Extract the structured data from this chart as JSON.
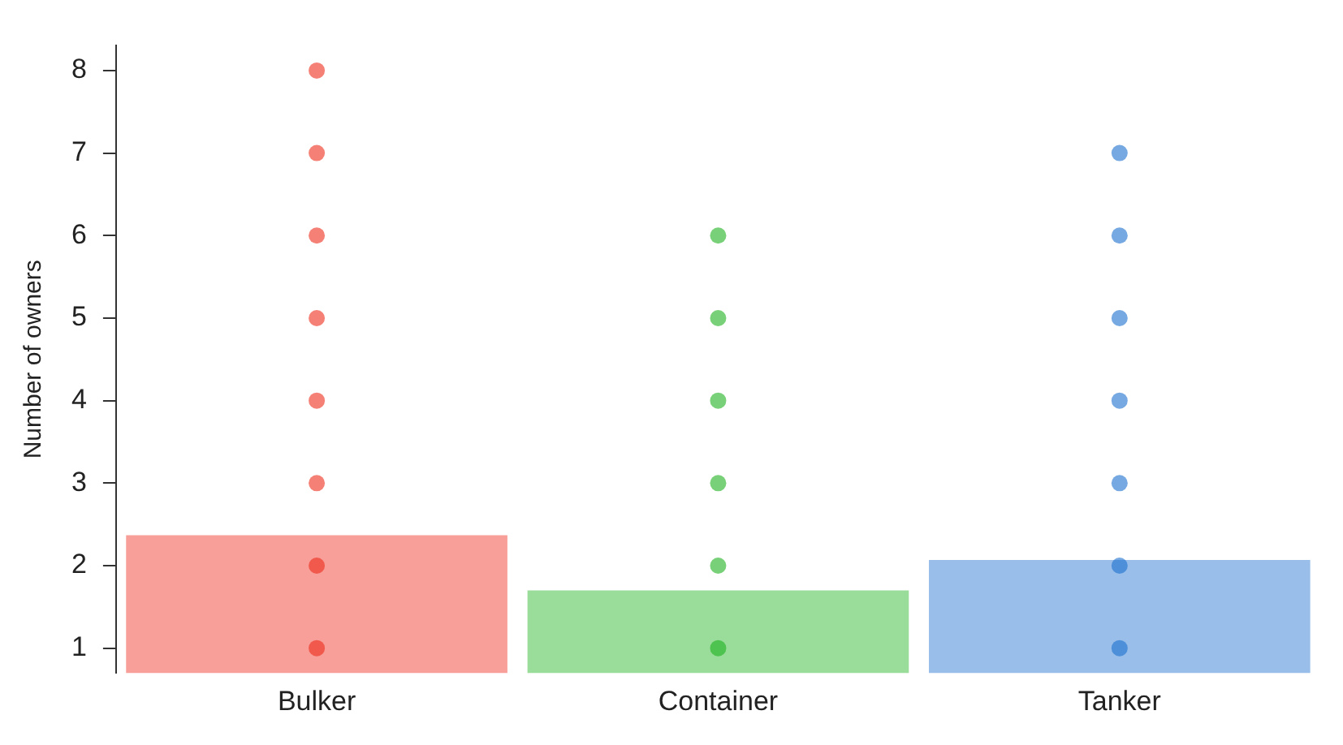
{
  "chart_data": {
    "type": "bar",
    "ylabel": "Number of owners",
    "categories": [
      "Bulker",
      "Container",
      "Tanker"
    ],
    "values": [
      2.37,
      1.7,
      2.07
    ],
    "colors": [
      "#ee2b1b",
      "#1eb31e",
      "#1a6fcf"
    ],
    "series": [
      {
        "type": "scatter",
        "color": "#ee2b1b",
        "x": [
          "Bulker",
          "Bulker",
          "Bulker",
          "Bulker",
          "Bulker",
          "Bulker",
          "Bulker",
          "Bulker"
        ],
        "values": [
          1,
          2,
          3,
          4,
          5,
          6,
          7,
          8
        ]
      },
      {
        "type": "scatter",
        "color": "#1eb31e",
        "x": [
          "Container",
          "Container",
          "Container",
          "Container",
          "Container",
          "Container"
        ],
        "values": [
          1,
          2,
          3,
          4,
          5,
          6
        ]
      },
      {
        "type": "scatter",
        "color": "#1a6fcf",
        "x": [
          "Tanker",
          "Tanker",
          "Tanker",
          "Tanker",
          "Tanker",
          "Tanker",
          "Tanker"
        ],
        "values": [
          1,
          2,
          3,
          4,
          5,
          6,
          7
        ]
      }
    ],
    "ylim": [
      0.7,
      8.3
    ],
    "yticks": [
      1,
      2,
      3,
      4,
      5,
      6,
      7,
      8
    ],
    "grid": false,
    "legend": false,
    "marker": "circle"
  }
}
